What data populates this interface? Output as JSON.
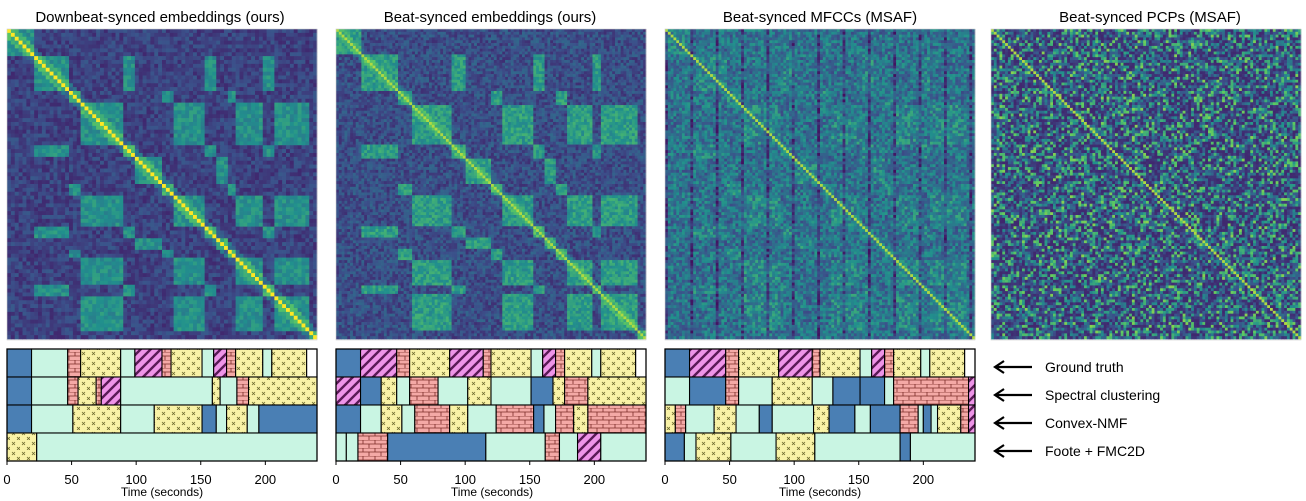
{
  "palette": {
    "ssm": [
      "#440154",
      "#3b528b",
      "#21908d",
      "#5dc962",
      "#fde725"
    ],
    "labels": {
      "dark": "#4a7fb4",
      "mint": "#c9f5e3",
      "brick": "#f4a9a6",
      "stripe": "#ee94e8",
      "cross": "#f9f2a6",
      "blank": "#ffffff"
    }
  },
  "legend": {
    "rows": [
      {
        "label": "Ground truth"
      },
      {
        "label": "Spectral clustering"
      },
      {
        "label": "Convex-NMF"
      },
      {
        "label": "Foote + FMC2D"
      }
    ],
    "icon": "left-arrow-icon"
  },
  "chart_data": [
    {
      "type": "heatmap",
      "title": "Downbeat-synced embeddings (ours)",
      "matrix_style": "downbeat",
      "xlabel": "Time (seconds)",
      "xlim": [
        0,
        240
      ],
      "xticks": [
        0,
        50,
        100,
        150,
        200
      ],
      "segmentations": [
        [
          [
            0,
            19,
            "dark"
          ],
          [
            19,
            47,
            "mint"
          ],
          [
            47,
            57,
            "brick"
          ],
          [
            57,
            88,
            "cross"
          ],
          [
            88,
            99,
            "mint"
          ],
          [
            99,
            120,
            "stripe"
          ],
          [
            120,
            127,
            "brick"
          ],
          [
            127,
            151,
            "cross"
          ],
          [
            151,
            160,
            "mint"
          ],
          [
            160,
            170,
            "stripe"
          ],
          [
            170,
            177,
            "brick"
          ],
          [
            177,
            198,
            "cross"
          ],
          [
            198,
            205,
            "mint"
          ],
          [
            205,
            232,
            "cross"
          ],
          [
            232,
            240,
            "blank"
          ]
        ],
        [
          [
            0,
            19,
            "dark"
          ],
          [
            19,
            47,
            "mint"
          ],
          [
            47,
            55,
            "brick"
          ],
          [
            55,
            69,
            "cross"
          ],
          [
            69,
            73,
            "brick"
          ],
          [
            73,
            88,
            "stripe"
          ],
          [
            88,
            159,
            "mint"
          ],
          [
            159,
            165,
            "cross"
          ],
          [
            165,
            178,
            "mint"
          ],
          [
            178,
            187,
            "brick"
          ],
          [
            187,
            240,
            "cross"
          ]
        ],
        [
          [
            0,
            19,
            "dark"
          ],
          [
            19,
            51,
            "mint"
          ],
          [
            51,
            88,
            "cross"
          ],
          [
            88,
            114,
            "mint"
          ],
          [
            114,
            151,
            "cross"
          ],
          [
            151,
            162,
            "dark"
          ],
          [
            162,
            170,
            "mint"
          ],
          [
            170,
            186,
            "cross"
          ],
          [
            186,
            195,
            "mint"
          ],
          [
            195,
            240,
            "dark"
          ]
        ],
        [
          [
            0,
            23,
            "cross"
          ],
          [
            23,
            240,
            "mint"
          ]
        ]
      ]
    },
    {
      "type": "heatmap",
      "title": "Beat-synced embeddings (ours)",
      "matrix_style": "beat",
      "xlabel": "Time (seconds)",
      "xlim": [
        0,
        240
      ],
      "xticks": [
        0,
        50,
        100,
        150,
        200
      ],
      "segmentations": [
        [
          [
            0,
            19,
            "dark"
          ],
          [
            19,
            47,
            "stripe"
          ],
          [
            47,
            57,
            "brick"
          ],
          [
            57,
            88,
            "cross"
          ],
          [
            88,
            114,
            "stripe"
          ],
          [
            114,
            120,
            "brick"
          ],
          [
            120,
            151,
            "cross"
          ],
          [
            151,
            160,
            "mint"
          ],
          [
            160,
            170,
            "stripe"
          ],
          [
            170,
            177,
            "brick"
          ],
          [
            177,
            198,
            "cross"
          ],
          [
            198,
            205,
            "mint"
          ],
          [
            205,
            232,
            "cross"
          ],
          [
            232,
            240,
            "blank"
          ]
        ],
        [
          [
            0,
            19,
            "stripe"
          ],
          [
            19,
            35,
            "dark"
          ],
          [
            35,
            47,
            "cross"
          ],
          [
            47,
            57,
            "mint"
          ],
          [
            57,
            79,
            "brick"
          ],
          [
            79,
            102,
            "mint"
          ],
          [
            102,
            120,
            "cross"
          ],
          [
            120,
            151,
            "mint"
          ],
          [
            151,
            168,
            "dark"
          ],
          [
            168,
            177,
            "cross"
          ],
          [
            177,
            195,
            "brick"
          ],
          [
            195,
            240,
            "cross"
          ]
        ],
        [
          [
            0,
            19,
            "dark"
          ],
          [
            19,
            35,
            "mint"
          ],
          [
            35,
            51,
            "cross"
          ],
          [
            51,
            61,
            "mint"
          ],
          [
            61,
            88,
            "brick"
          ],
          [
            88,
            102,
            "cross"
          ],
          [
            102,
            124,
            "mint"
          ],
          [
            124,
            153,
            "brick"
          ],
          [
            153,
            161,
            "dark"
          ],
          [
            161,
            170,
            "mint"
          ],
          [
            170,
            184,
            "brick"
          ],
          [
            184,
            195,
            "cross"
          ],
          [
            195,
            240,
            "brick"
          ]
        ],
        [
          [
            0,
            8,
            "mint"
          ],
          [
            8,
            17,
            "mint"
          ],
          [
            17,
            40,
            "brick"
          ],
          [
            40,
            116,
            "dark"
          ],
          [
            116,
            162,
            "mint"
          ],
          [
            162,
            173,
            "brick"
          ],
          [
            173,
            187,
            "mint"
          ],
          [
            187,
            205,
            "stripe"
          ],
          [
            205,
            240,
            "mint"
          ]
        ]
      ]
    },
    {
      "type": "heatmap",
      "title": "Beat-synced MFCCs (MSAF)",
      "matrix_style": "mfcc",
      "xlabel": "Time (seconds)",
      "xlim": [
        0,
        240
      ],
      "xticks": [
        0,
        50,
        100,
        150,
        200
      ],
      "segmentations": [
        [
          [
            0,
            19,
            "dark"
          ],
          [
            19,
            47,
            "stripe"
          ],
          [
            47,
            57,
            "brick"
          ],
          [
            57,
            88,
            "cross"
          ],
          [
            88,
            114,
            "stripe"
          ],
          [
            114,
            120,
            "brick"
          ],
          [
            120,
            151,
            "cross"
          ],
          [
            151,
            160,
            "mint"
          ],
          [
            160,
            170,
            "stripe"
          ],
          [
            170,
            177,
            "brick"
          ],
          [
            177,
            198,
            "cross"
          ],
          [
            198,
            205,
            "mint"
          ],
          [
            205,
            232,
            "cross"
          ],
          [
            232,
            240,
            "blank"
          ]
        ],
        [
          [
            0,
            19,
            "mint"
          ],
          [
            19,
            47,
            "dark"
          ],
          [
            47,
            57,
            "brick"
          ],
          [
            57,
            83,
            "mint"
          ],
          [
            83,
            114,
            "cross"
          ],
          [
            114,
            130,
            "mint"
          ],
          [
            130,
            151,
            "dark"
          ],
          [
            151,
            170,
            "dark"
          ],
          [
            170,
            177,
            "mint"
          ],
          [
            177,
            235,
            "brick"
          ],
          [
            235,
            240,
            "stripe"
          ]
        ],
        [
          [
            0,
            8,
            "cross"
          ],
          [
            8,
            16,
            "brick"
          ],
          [
            16,
            38,
            "mint"
          ],
          [
            38,
            55,
            "cross"
          ],
          [
            55,
            73,
            "mint"
          ],
          [
            73,
            83,
            "dark"
          ],
          [
            83,
            115,
            "mint"
          ],
          [
            115,
            127,
            "cross"
          ],
          [
            127,
            147,
            "dark"
          ],
          [
            147,
            159,
            "mint"
          ],
          [
            159,
            182,
            "dark"
          ],
          [
            182,
            196,
            "brick"
          ],
          [
            196,
            200,
            "mint"
          ],
          [
            200,
            206,
            "dark"
          ],
          [
            206,
            211,
            "mint"
          ],
          [
            211,
            229,
            "cross"
          ],
          [
            229,
            235,
            "brick"
          ],
          [
            235,
            240,
            "stripe"
          ]
        ],
        [
          [
            0,
            15,
            "dark"
          ],
          [
            15,
            24,
            "mint"
          ],
          [
            24,
            51,
            "cross"
          ],
          [
            51,
            86,
            "mint"
          ],
          [
            86,
            116,
            "cross"
          ],
          [
            116,
            182,
            "mint"
          ],
          [
            182,
            190,
            "dark"
          ],
          [
            190,
            240,
            "mint"
          ]
        ]
      ]
    },
    {
      "type": "heatmap",
      "title": "Beat-synced PCPs (MSAF)",
      "matrix_style": "pcp"
    }
  ]
}
